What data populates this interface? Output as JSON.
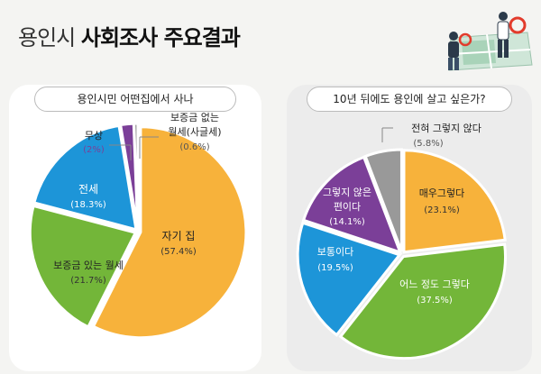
{
  "title": {
    "part1": "용인시",
    "part2": "사회조사 주요결과"
  },
  "chart_data": [
    {
      "type": "pie",
      "title": "용인시민 어떤집에서 사나",
      "slices": [
        {
          "label": "자기 집",
          "value": 57.4,
          "display": "(57.4%)",
          "color": "#f7b23b"
        },
        {
          "label": "보증금 있는 월세",
          "value": 21.7,
          "display": "(21.7%)",
          "color": "#73b639"
        },
        {
          "label": "전세",
          "value": 18.3,
          "display": "(18.3%)",
          "color": "#1d95d8"
        },
        {
          "label": "무상",
          "value": 2,
          "display": "(2%)",
          "color": "#7b3f98"
        },
        {
          "label": "보증금 없는 월세(사글세)",
          "value": 0.6,
          "display": "(0.6%)",
          "color": "#999999"
        }
      ]
    },
    {
      "type": "pie",
      "title": "10년 뒤에도 용인에 살고 싶은가?",
      "slices": [
        {
          "label": "매우 그렇다",
          "value": 23.1,
          "display": "(23.1%)",
          "color": "#f7b23b"
        },
        {
          "label": "어느 정도 그렇다",
          "value": 37.5,
          "display": "(37.5%)",
          "color": "#73b639"
        },
        {
          "label": "보통이다",
          "value": 19.5,
          "display": "(19.5%)",
          "color": "#1d95d8"
        },
        {
          "label": "그렇지 않은 편이다",
          "value": 14.1,
          "display": "(14.1%)",
          "color": "#7b3f98"
        },
        {
          "label": "전혀 그렇지 않다",
          "value": 5.8,
          "display": "(5.8%)",
          "color": "#999999"
        }
      ]
    }
  ],
  "labels": {
    "left": {
      "own_name": "자기 집",
      "own_val": "(57.4%)",
      "deposit_name": "보증금 있는 월세",
      "deposit_val": "(21.7%)",
      "jeonse_name": "전세",
      "jeonse_val": "(18.3%)",
      "free_name": "무상",
      "free_val": "(2%)",
      "nodep_name1": "보증금 없는",
      "nodep_name2": "월세(사글세)",
      "nodep_val": "(0.6%)"
    },
    "right": {
      "very_name": "매우그렇다",
      "very_val": "(23.1%)",
      "some_name": "어느 정도 그렇다",
      "some_val": "(37.5%)",
      "avg_name": "보통이다",
      "avg_val": "(19.5%)",
      "not_name1": "그렇지 않은",
      "not_name2": "편이다",
      "not_val": "(14.1%)",
      "never_name": "전혀 그렇지 않다",
      "never_val": "(5.8%)"
    }
  }
}
